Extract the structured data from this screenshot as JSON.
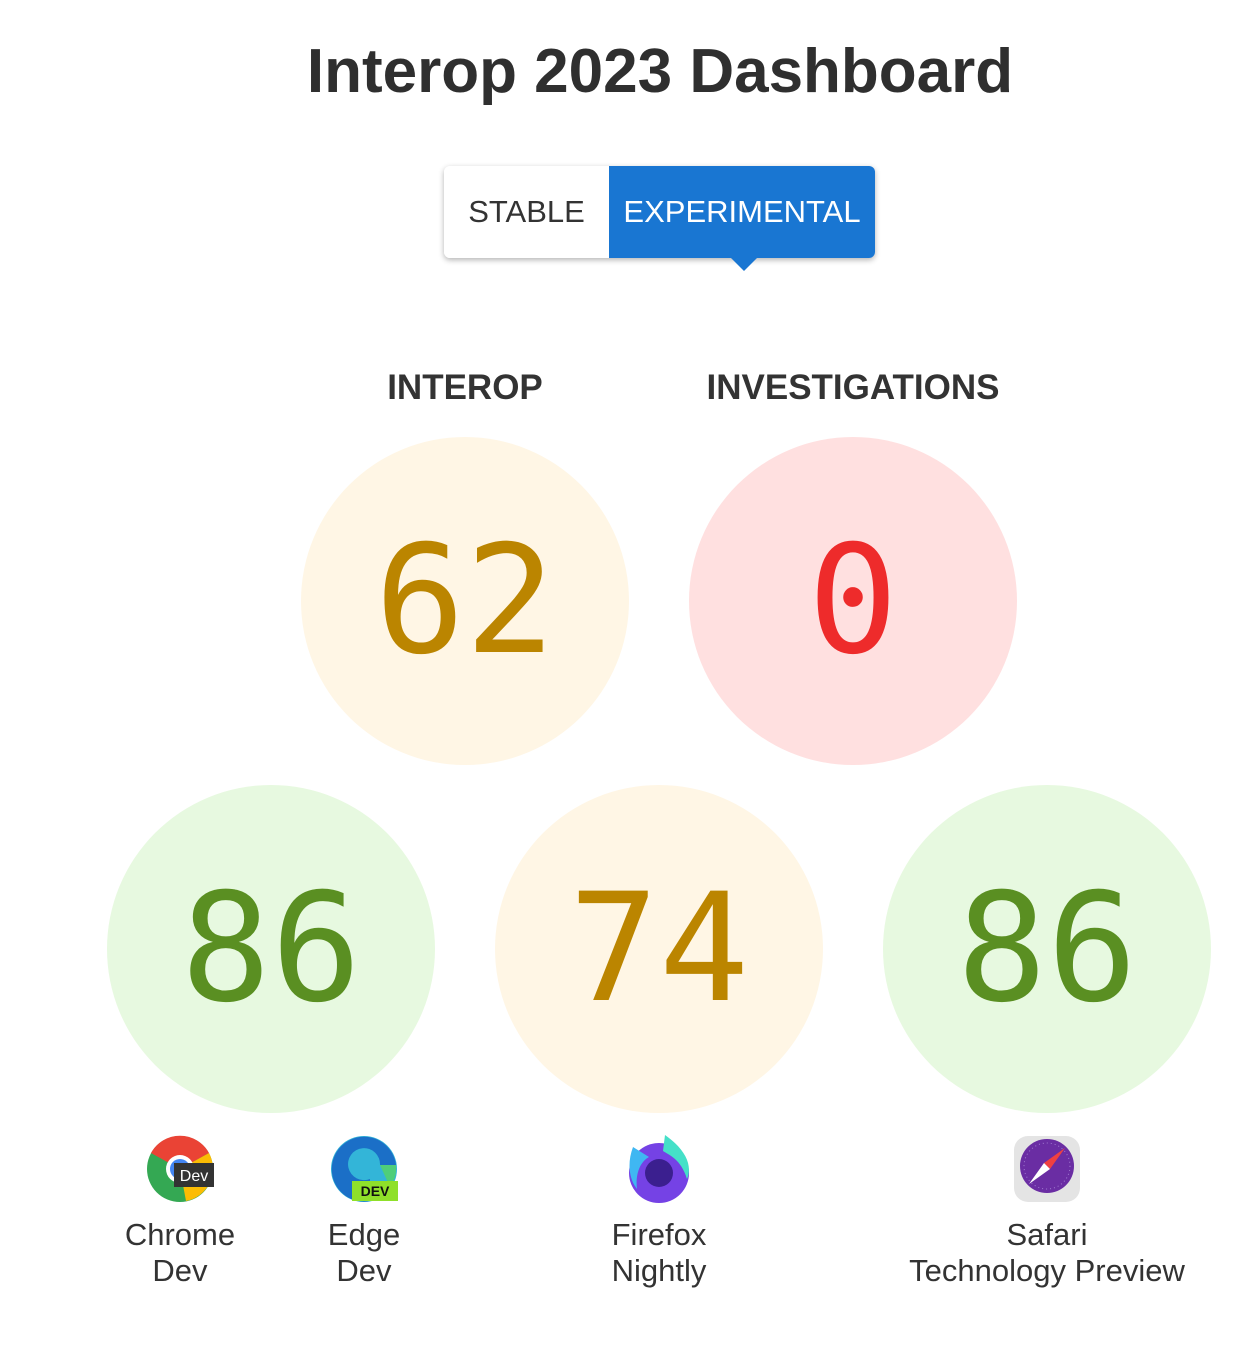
{
  "title": "Interop 2023 Dashboard",
  "toggle": {
    "stable": "STABLE",
    "experimental": "EXPERIMENTAL",
    "selected": "EXPERIMENTAL"
  },
  "summary": {
    "interop": {
      "label": "INTEROP",
      "score": "62"
    },
    "investigations": {
      "label": "INVESTIGATIONS",
      "score": "0"
    }
  },
  "browsers": [
    {
      "score": "86",
      "icon": "chrome-dev-icon",
      "name_line1": "Chrome",
      "name_line2": "Dev",
      "badge": "Dev"
    },
    {
      "icon": "edge-dev-icon",
      "name_line1": "Edge",
      "name_line2": "Dev",
      "badge": "DEV"
    },
    {
      "score": "74",
      "icon": "firefox-nightly-icon",
      "name_line1": "Firefox",
      "name_line2": "Nightly"
    },
    {
      "score": "86",
      "icon": "safari-tp-icon",
      "name_line1": "Safari",
      "name_line2": "Technology Preview"
    }
  ],
  "colors": {
    "accent": "#1976d2",
    "yellow_text": "#bb8500",
    "yellow_bg": "#fff6e5",
    "red_text": "#ee2b2b",
    "red_bg": "#ffe0e0",
    "green_text": "#5a8f22",
    "green_bg": "#e7f9e0"
  }
}
